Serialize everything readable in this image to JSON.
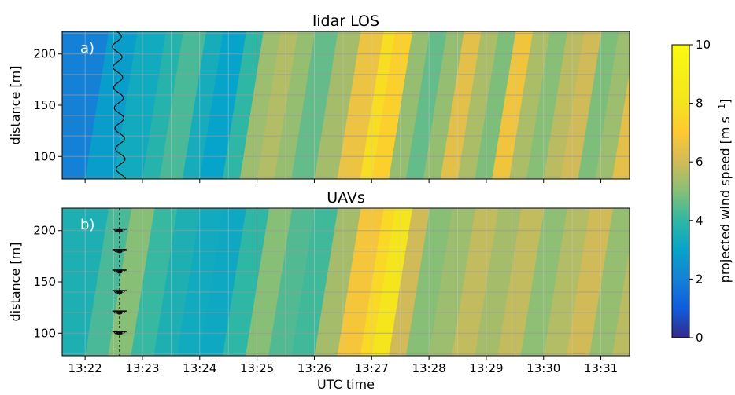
{
  "chart_data": [
    {
      "id": "a",
      "type": "heatmap",
      "title": "lidar LOS",
      "panel_label": "a)",
      "xlabel": "",
      "ylabel": "distance [m]",
      "yticks": [
        "100",
        "150",
        "200"
      ],
      "ytick_values": [
        100,
        150,
        200
      ],
      "ylim": [
        78,
        222
      ],
      "xlim_minutes": [
        21.6,
        31.5
      ],
      "grid": true,
      "colorscale": "parula",
      "bands": [
        {
          "t": 21.6,
          "v": 2.0
        },
        {
          "t": 22.0,
          "v": 2.8
        },
        {
          "t": 22.5,
          "v": 3.3
        },
        {
          "t": 23.0,
          "v": 3.8
        },
        {
          "t": 23.3,
          "v": 4.3
        },
        {
          "t": 23.7,
          "v": 3.4
        },
        {
          "t": 24.0,
          "v": 3.0
        },
        {
          "t": 24.4,
          "v": 4.0
        },
        {
          "t": 24.7,
          "v": 5.3
        },
        {
          "t": 25.0,
          "v": 5.6
        },
        {
          "t": 25.3,
          "v": 5.2
        },
        {
          "t": 25.6,
          "v": 4.6
        },
        {
          "t": 26.0,
          "v": 5.4
        },
        {
          "t": 26.4,
          "v": 6.6
        },
        {
          "t": 26.8,
          "v": 7.8
        },
        {
          "t": 27.0,
          "v": 7.3
        },
        {
          "t": 27.3,
          "v": 5.2
        },
        {
          "t": 27.6,
          "v": 4.6
        },
        {
          "t": 27.9,
          "v": 5.2
        },
        {
          "t": 28.2,
          "v": 6.4
        },
        {
          "t": 28.5,
          "v": 5.5
        },
        {
          "t": 28.8,
          "v": 4.9
        },
        {
          "t": 29.1,
          "v": 6.7
        },
        {
          "t": 29.4,
          "v": 5.5
        },
        {
          "t": 29.7,
          "v": 5.0
        },
        {
          "t": 30.0,
          "v": 5.7
        },
        {
          "t": 30.3,
          "v": 6.0
        },
        {
          "t": 30.6,
          "v": 4.9
        },
        {
          "t": 30.9,
          "v": 5.3
        },
        {
          "t": 31.2,
          "v": 6.4
        },
        {
          "t": 31.5,
          "v": 5.6
        }
      ]
    },
    {
      "id": "b",
      "type": "heatmap",
      "title": "UAVs",
      "panel_label": "b)",
      "xlabel": "UTC time",
      "ylabel": "distance [m]",
      "yticks": [
        "100",
        "150",
        "200"
      ],
      "ytick_values": [
        100,
        150,
        200
      ],
      "ylim": [
        78,
        222
      ],
      "xticks": [
        "13:22",
        "13:23",
        "13:24",
        "13:25",
        "13:26",
        "13:27",
        "13:28",
        "13:29",
        "13:30",
        "13:31"
      ],
      "xtick_minutes": [
        22,
        23,
        24,
        25,
        26,
        27,
        28,
        29,
        30,
        31
      ],
      "xlim_minutes": [
        21.6,
        31.5
      ],
      "uav_distances": [
        100,
        120,
        140,
        160,
        180,
        200
      ],
      "grid": true,
      "colorscale": "parula",
      "bands": [
        {
          "t": 21.6,
          "v": 3.6
        },
        {
          "t": 22.0,
          "v": 4.3
        },
        {
          "t": 22.4,
          "v": 5.0
        },
        {
          "t": 22.8,
          "v": 4.1
        },
        {
          "t": 23.2,
          "v": 3.6
        },
        {
          "t": 23.6,
          "v": 3.3
        },
        {
          "t": 24.0,
          "v": 3.2
        },
        {
          "t": 24.4,
          "v": 4.0
        },
        {
          "t": 24.8,
          "v": 5.0
        },
        {
          "t": 25.2,
          "v": 4.4
        },
        {
          "t": 25.6,
          "v": 4.2
        },
        {
          "t": 26.0,
          "v": 5.4
        },
        {
          "t": 26.4,
          "v": 6.8
        },
        {
          "t": 26.8,
          "v": 7.6
        },
        {
          "t": 27.0,
          "v": 8.2
        },
        {
          "t": 27.3,
          "v": 6.0
        },
        {
          "t": 27.6,
          "v": 5.0
        },
        {
          "t": 28.0,
          "v": 5.3
        },
        {
          "t": 28.4,
          "v": 5.8
        },
        {
          "t": 28.8,
          "v": 5.4
        },
        {
          "t": 29.2,
          "v": 5.8
        },
        {
          "t": 29.6,
          "v": 5.1
        },
        {
          "t": 30.0,
          "v": 5.6
        },
        {
          "t": 30.4,
          "v": 6.0
        },
        {
          "t": 30.8,
          "v": 5.2
        },
        {
          "t": 31.2,
          "v": 5.7
        },
        {
          "t": 31.5,
          "v": 5.3
        }
      ]
    }
  ],
  "colorbar": {
    "label": "projected wind speed [m s",
    "label_superscript": "−1",
    "label_close": "]",
    "range": [
      0,
      10
    ],
    "ticks": [
      "0",
      "2",
      "4",
      "6",
      "8",
      "10"
    ],
    "tick_values": [
      0,
      2,
      4,
      6,
      8,
      10
    ]
  }
}
